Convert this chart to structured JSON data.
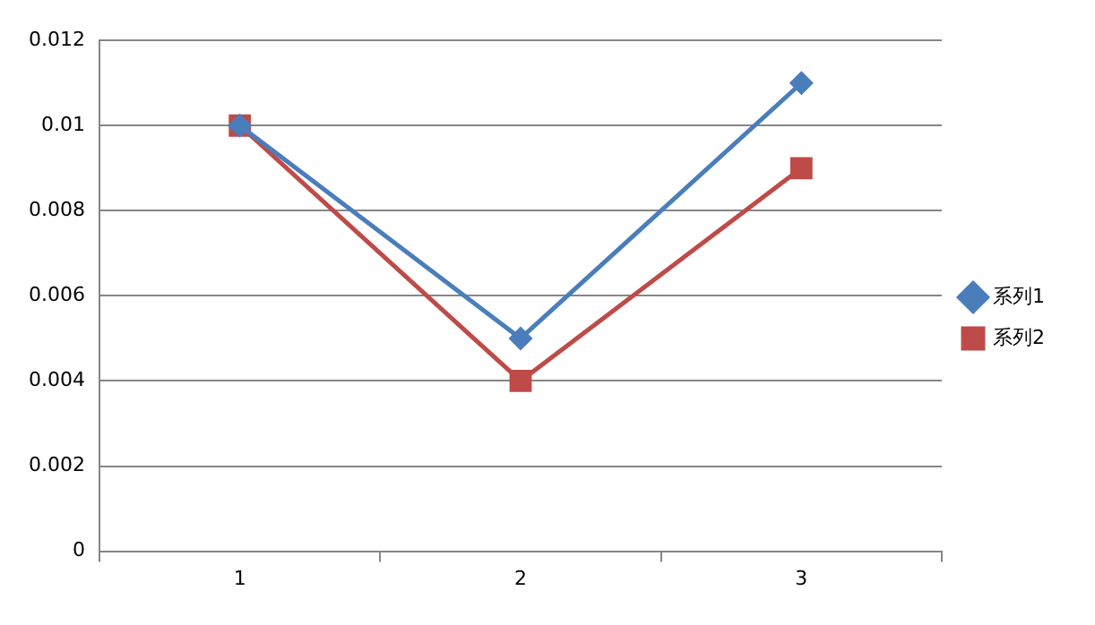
{
  "chart_data": {
    "type": "line",
    "categories": [
      "1",
      "2",
      "3"
    ],
    "series": [
      {
        "name": "系列1",
        "color": "#4a7ebb",
        "values": [
          0.01,
          0.005,
          0.011
        ],
        "marker": "diamond"
      },
      {
        "name": "系列2",
        "color": "#be4b48",
        "values": [
          0.01,
          0.004,
          0.009
        ],
        "marker": "square"
      }
    ],
    "ylim": [
      0,
      0.012
    ],
    "yticks": [
      0,
      0.002,
      0.004,
      0.006,
      0.008,
      0.01,
      0.012
    ],
    "grid": "y",
    "legend": "right",
    "line_style": "solid"
  }
}
